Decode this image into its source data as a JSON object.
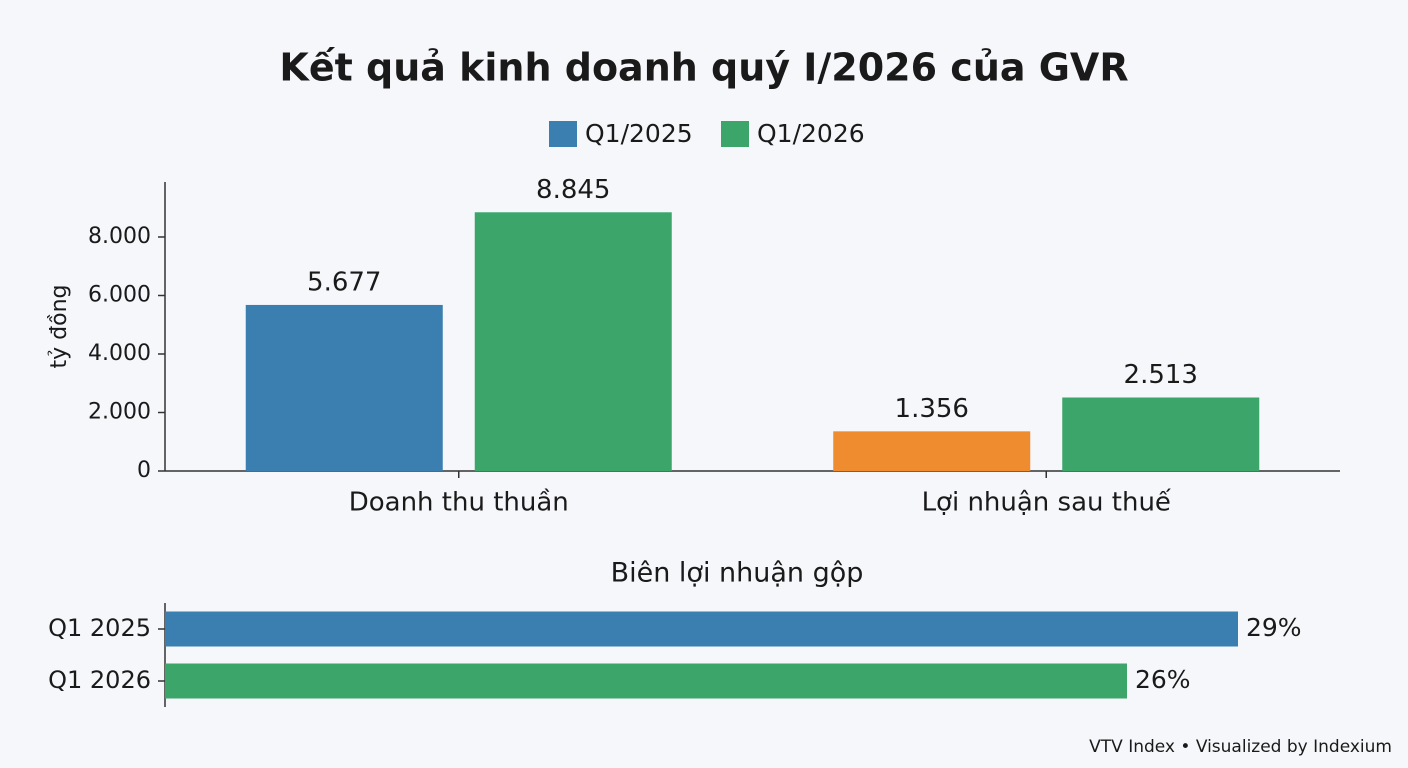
{
  "title": "Kết quả kinh doanh quý I/2026 của GVR",
  "footer": "VTV Index • Visualized by Indexium",
  "chart_data": [
    {
      "type": "bar",
      "ylabel": "tỷ đồng",
      "categories": [
        "Doanh thu thuần",
        "Lợi nhuận sau thuế"
      ],
      "series": [
        {
          "name": "Q1/2025",
          "color": "#3a7fb0",
          "colors": [
            "#3a7fb0",
            "#ef8c30"
          ],
          "values": [
            5677,
            1356
          ],
          "value_labels": [
            "5.677",
            "1.356"
          ]
        },
        {
          "name": "Q1/2026",
          "color": "#3ba56a",
          "colors": [
            "#3ba56a",
            "#3ba56a"
          ],
          "values": [
            8845,
            2513
          ],
          "value_labels": [
            "8.845",
            "2.513"
          ]
        }
      ],
      "ylim": [
        0,
        9880
      ],
      "yticks": [
        0,
        {
          "value": 2000,
          "label": "2.000"
        },
        {
          "value": 4000,
          "label": "4.000"
        },
        {
          "value": 6000,
          "label": "6.000"
        },
        {
          "value": 8000,
          "label": "8.000"
        }
      ],
      "legend": "top"
    },
    {
      "type": "hbar",
      "title": "Biên lợi nhuận gộp",
      "categories": [
        "Q1 2025",
        "Q1 2026"
      ],
      "values": [
        29,
        26
      ],
      "value_labels": [
        "29%",
        "26%"
      ],
      "colors": [
        "#3a7fb0",
        "#3ba56a"
      ],
      "xlim": [
        0,
        30
      ]
    }
  ]
}
